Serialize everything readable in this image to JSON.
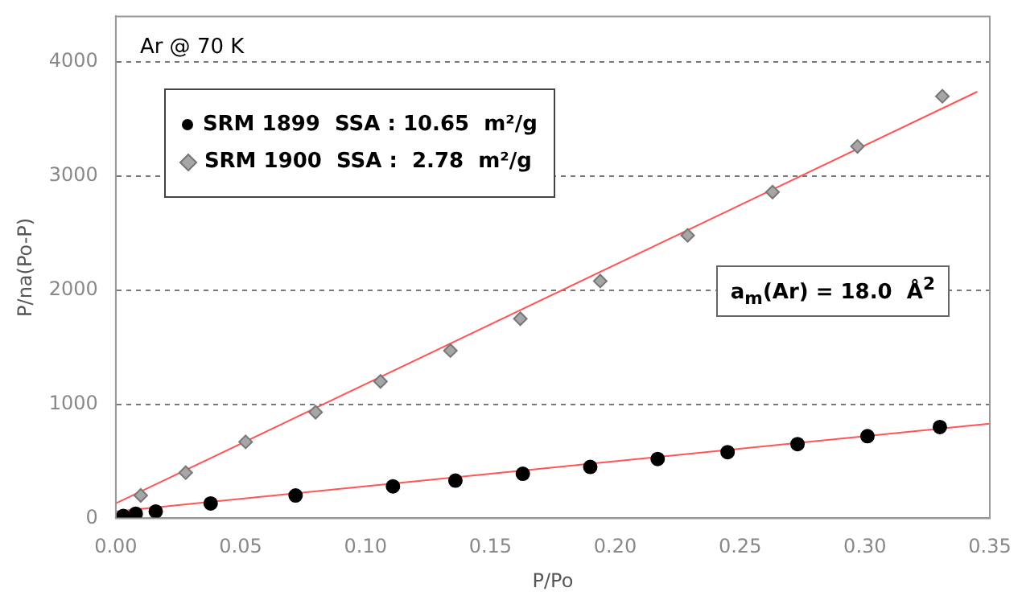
{
  "chart_data": {
    "type": "scatter",
    "xlabel": "P/Po",
    "ylabel": "P/na(Po-P)",
    "xlim": [
      0,
      0.35
    ],
    "xticks": [
      {
        "value": 0,
        "label": "0.00"
      },
      {
        "value": 0.05,
        "label": "0.05"
      },
      {
        "value": 0.1,
        "label": "0.10"
      },
      {
        "value": 0.15,
        "label": "0.15"
      },
      {
        "value": 0.2,
        "label": "0.20"
      },
      {
        "value": 0.25,
        "label": "0.25"
      },
      {
        "value": 0.3,
        "label": "0.30"
      },
      {
        "value": 0.35,
        "label": "0.35"
      }
    ],
    "ylim": [
      0,
      4400
    ],
    "yticks": [
      0,
      1000,
      2000,
      3000,
      4000
    ],
    "grid": "y",
    "legend": "top left",
    "annotations": [
      "Ar @ 70 K",
      "a$_{m}$(Ar) = 18.0  Å$^{2}$"
    ],
    "series": [
      {
        "name": "SRM 1899  SSA : 10.65  m²/g",
        "color": "#000000",
        "marker": "circle",
        "x": [
          0.003,
          0.008,
          0.016,
          0.038,
          0.072,
          0.111,
          0.136,
          0.163,
          0.19,
          0.217,
          0.245,
          0.273,
          0.301,
          0.33
        ],
        "values": [
          20,
          40,
          60,
          130,
          200,
          280,
          330,
          390,
          450,
          520,
          580,
          650,
          720,
          800
        ]
      },
      {
        "name": "SRM 1900  SSA :  2.78  m²/g",
        "color": "#a6a6a6",
        "marker": "diamond",
        "x": [
          0.01,
          0.028,
          0.052,
          0.08,
          0.106,
          0.134,
          0.162,
          0.194,
          0.229,
          0.263,
          0.297,
          0.331
        ],
        "values": [
          200,
          400,
          670,
          930,
          1200,
          1470,
          1750,
          2080,
          2480,
          2860,
          3260,
          3700
        ]
      },
      {
        "type": "line",
        "color": "#ff5555",
        "marker": "none",
        "x": [
          0,
          0.35
        ],
        "values": [
          60,
          830
        ]
      },
      {
        "type": "line",
        "color": "#ff5555",
        "marker": "none",
        "x": [
          0,
          0.345
        ],
        "values": [
          130,
          3740
        ]
      }
    ]
  }
}
